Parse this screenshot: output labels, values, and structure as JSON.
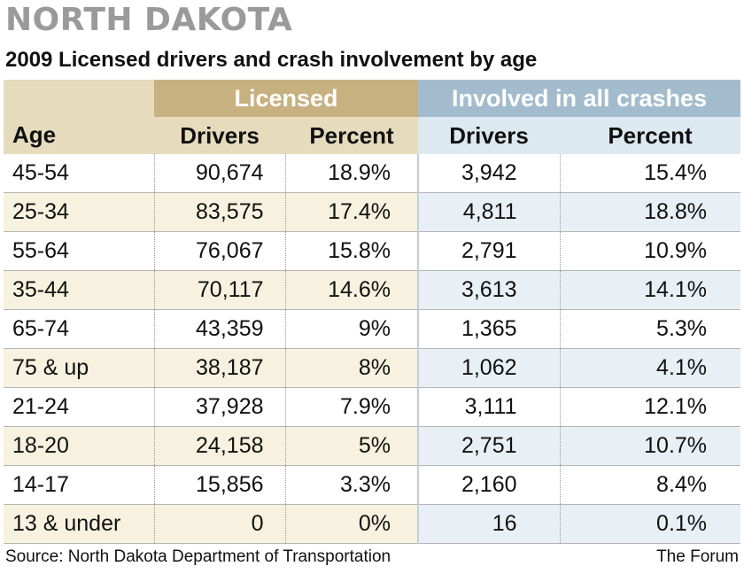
{
  "title": "NORTH DAKOTA",
  "subtitle": "2009 Licensed drivers and crash involvement by age",
  "chart_data": {
    "type": "table",
    "groups": {
      "licensed": "Licensed",
      "crashes": "Involved in all crashes"
    },
    "columns": [
      "Age",
      "Drivers",
      "Percent",
      "Drivers",
      "Percent"
    ],
    "rows": [
      {
        "age": "45-54",
        "lic_drivers": "90,674",
        "lic_percent": "18.9%",
        "crash_drivers": "3,942",
        "crash_percent": "15.4%"
      },
      {
        "age": "25-34",
        "lic_drivers": "83,575",
        "lic_percent": "17.4%",
        "crash_drivers": "4,811",
        "crash_percent": "18.8%"
      },
      {
        "age": "55-64",
        "lic_drivers": "76,067",
        "lic_percent": "15.8%",
        "crash_drivers": "2,791",
        "crash_percent": "10.9%"
      },
      {
        "age": "35-44",
        "lic_drivers": "70,117",
        "lic_percent": "14.6%",
        "crash_drivers": "3,613",
        "crash_percent": "14.1%"
      },
      {
        "age": "65-74",
        "lic_drivers": "43,359",
        "lic_percent": "9%",
        "crash_drivers": "1,365",
        "crash_percent": "5.3%"
      },
      {
        "age": "75 & up",
        "lic_drivers": "38,187",
        "lic_percent": "8%",
        "crash_drivers": "1,062",
        "crash_percent": "4.1%"
      },
      {
        "age": "21-24",
        "lic_drivers": "37,928",
        "lic_percent": "7.9%",
        "crash_drivers": "3,111",
        "crash_percent": "12.1%"
      },
      {
        "age": "18-20",
        "lic_drivers": "24,158",
        "lic_percent": "5%",
        "crash_drivers": "2,751",
        "crash_percent": "10.7%"
      },
      {
        "age": "14-17",
        "lic_drivers": "15,856",
        "lic_percent": "3.3%",
        "crash_drivers": "2,160",
        "crash_percent": "8.4%"
      },
      {
        "age": "13 & under",
        "lic_drivers": "0",
        "lic_percent": "0%",
        "crash_drivers": "16",
        "crash_percent": "0.1%"
      }
    ]
  },
  "source": "Source: North Dakota Department of Transportation",
  "credit": "The Forum",
  "colors": {
    "title_gray": "#9a9a9a",
    "licensed_header": "#c8b180",
    "licensed_subheader": "#e6dbbd",
    "licensed_stripe": "#f7f1df",
    "crash_header": "#a3bccd",
    "crash_subheader": "#dde9f1",
    "crash_stripe": "#e8f0f5"
  }
}
